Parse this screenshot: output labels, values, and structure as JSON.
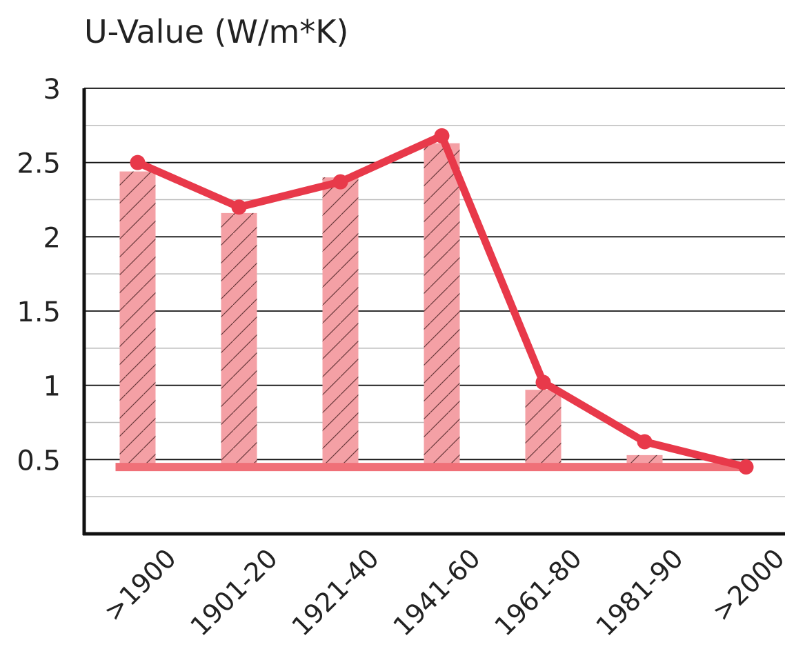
{
  "chart_data": {
    "type": "bar",
    "title": "U-Value (W/m*K)",
    "categories": [
      ">1900",
      "1901-20",
      "1921-40",
      "1941-60",
      "1961-80",
      "1981-90",
      ">2000"
    ],
    "series": [
      {
        "type": "bar",
        "color": "#f4a0a5",
        "hatch": "#6b3a3c",
        "values": [
          2.44,
          2.16,
          2.4,
          2.63,
          0.97,
          0.53,
          0.45
        ]
      },
      {
        "type": "line",
        "color": "#e8394a",
        "values": [
          2.5,
          2.2,
          2.37,
          2.68,
          1.02,
          0.62,
          0.45
        ]
      }
    ],
    "bar_base": 0.45,
    "bar_base_color": "#f07078",
    "ylim": [
      0,
      3
    ],
    "yticks": [
      0.5,
      1,
      1.5,
      2,
      2.5,
      3
    ],
    "minor_yticks": [
      0.25,
      0.75,
      1.25,
      1.75,
      2.25,
      2.75
    ],
    "grid": true
  }
}
